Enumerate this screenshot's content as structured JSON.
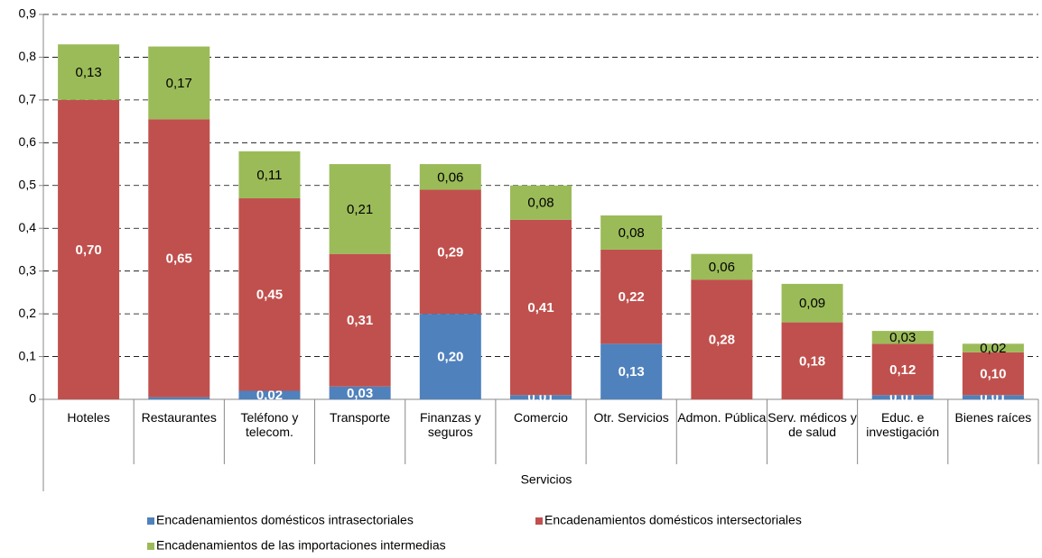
{
  "chart_data": {
    "type": "stacked_bar",
    "group_label": "Servicios",
    "categories": [
      "Hoteles",
      "Restaurantes",
      "Teléfono y telecom.",
      "Transporte",
      "Finanzas y seguros",
      "Comercio",
      "Otr. Servicios",
      "Admon. Pública",
      "Serv. médicos y de salud",
      "Educ. e investigación",
      "Bienes raíces"
    ],
    "series": [
      {
        "name": "Encadenamientos domésticos intrasectoriales",
        "color": "#4f81bd",
        "label_color": "#ffffff",
        "values": [
          0,
          0.005,
          0.02,
          0.03,
          0.2,
          0.01,
          0.13,
          0,
          0,
          0.01,
          0.01
        ],
        "value_labels": [
          null,
          null,
          "0,02",
          "0,03",
          "0,20",
          "0,01",
          "0,13",
          null,
          null,
          "0,01",
          "0,01"
        ]
      },
      {
        "name": "Encadenamientos domésticos intersectoriales",
        "color": "#c0504d",
        "label_color": "#ffffff",
        "values": [
          0.7,
          0.65,
          0.45,
          0.31,
          0.29,
          0.41,
          0.22,
          0.28,
          0.18,
          0.12,
          0.1
        ],
        "value_labels": [
          "0,70",
          "0,65",
          "0,45",
          "0,31",
          "0,29",
          "0,41",
          "0,22",
          "0,28",
          "0,18",
          "0,12",
          "0,10"
        ]
      },
      {
        "name": "Encadenamientos de las importaciones intermedias",
        "color": "#9bbb59",
        "label_color": "#000000",
        "values": [
          0.13,
          0.17,
          0.11,
          0.21,
          0.06,
          0.08,
          0.08,
          0.06,
          0.09,
          0.03,
          0.02
        ],
        "value_labels": [
          "0,13",
          "0,17",
          "0,11",
          "0,21",
          "0,06",
          "0,08",
          "0,08",
          "0,06",
          "0,09",
          "0,03",
          "0,02"
        ]
      }
    ],
    "ylim": [
      0,
      0.9
    ],
    "yticks": [
      0,
      {
        "value": 0.1,
        "label": "0,1"
      },
      {
        "value": 0.2,
        "label": "0,2"
      },
      {
        "value": 0.3,
        "label": "0,3"
      },
      {
        "value": 0.4,
        "label": "0,4"
      },
      {
        "value": 0.5,
        "label": "0,5"
      },
      {
        "value": 0.6,
        "label": "0,6"
      },
      {
        "value": 0.7,
        "label": "0,7"
      },
      {
        "value": 0.8,
        "label": "0,8"
      },
      {
        "value": 0.9,
        "label": "0,9"
      }
    ],
    "grid": true
  }
}
